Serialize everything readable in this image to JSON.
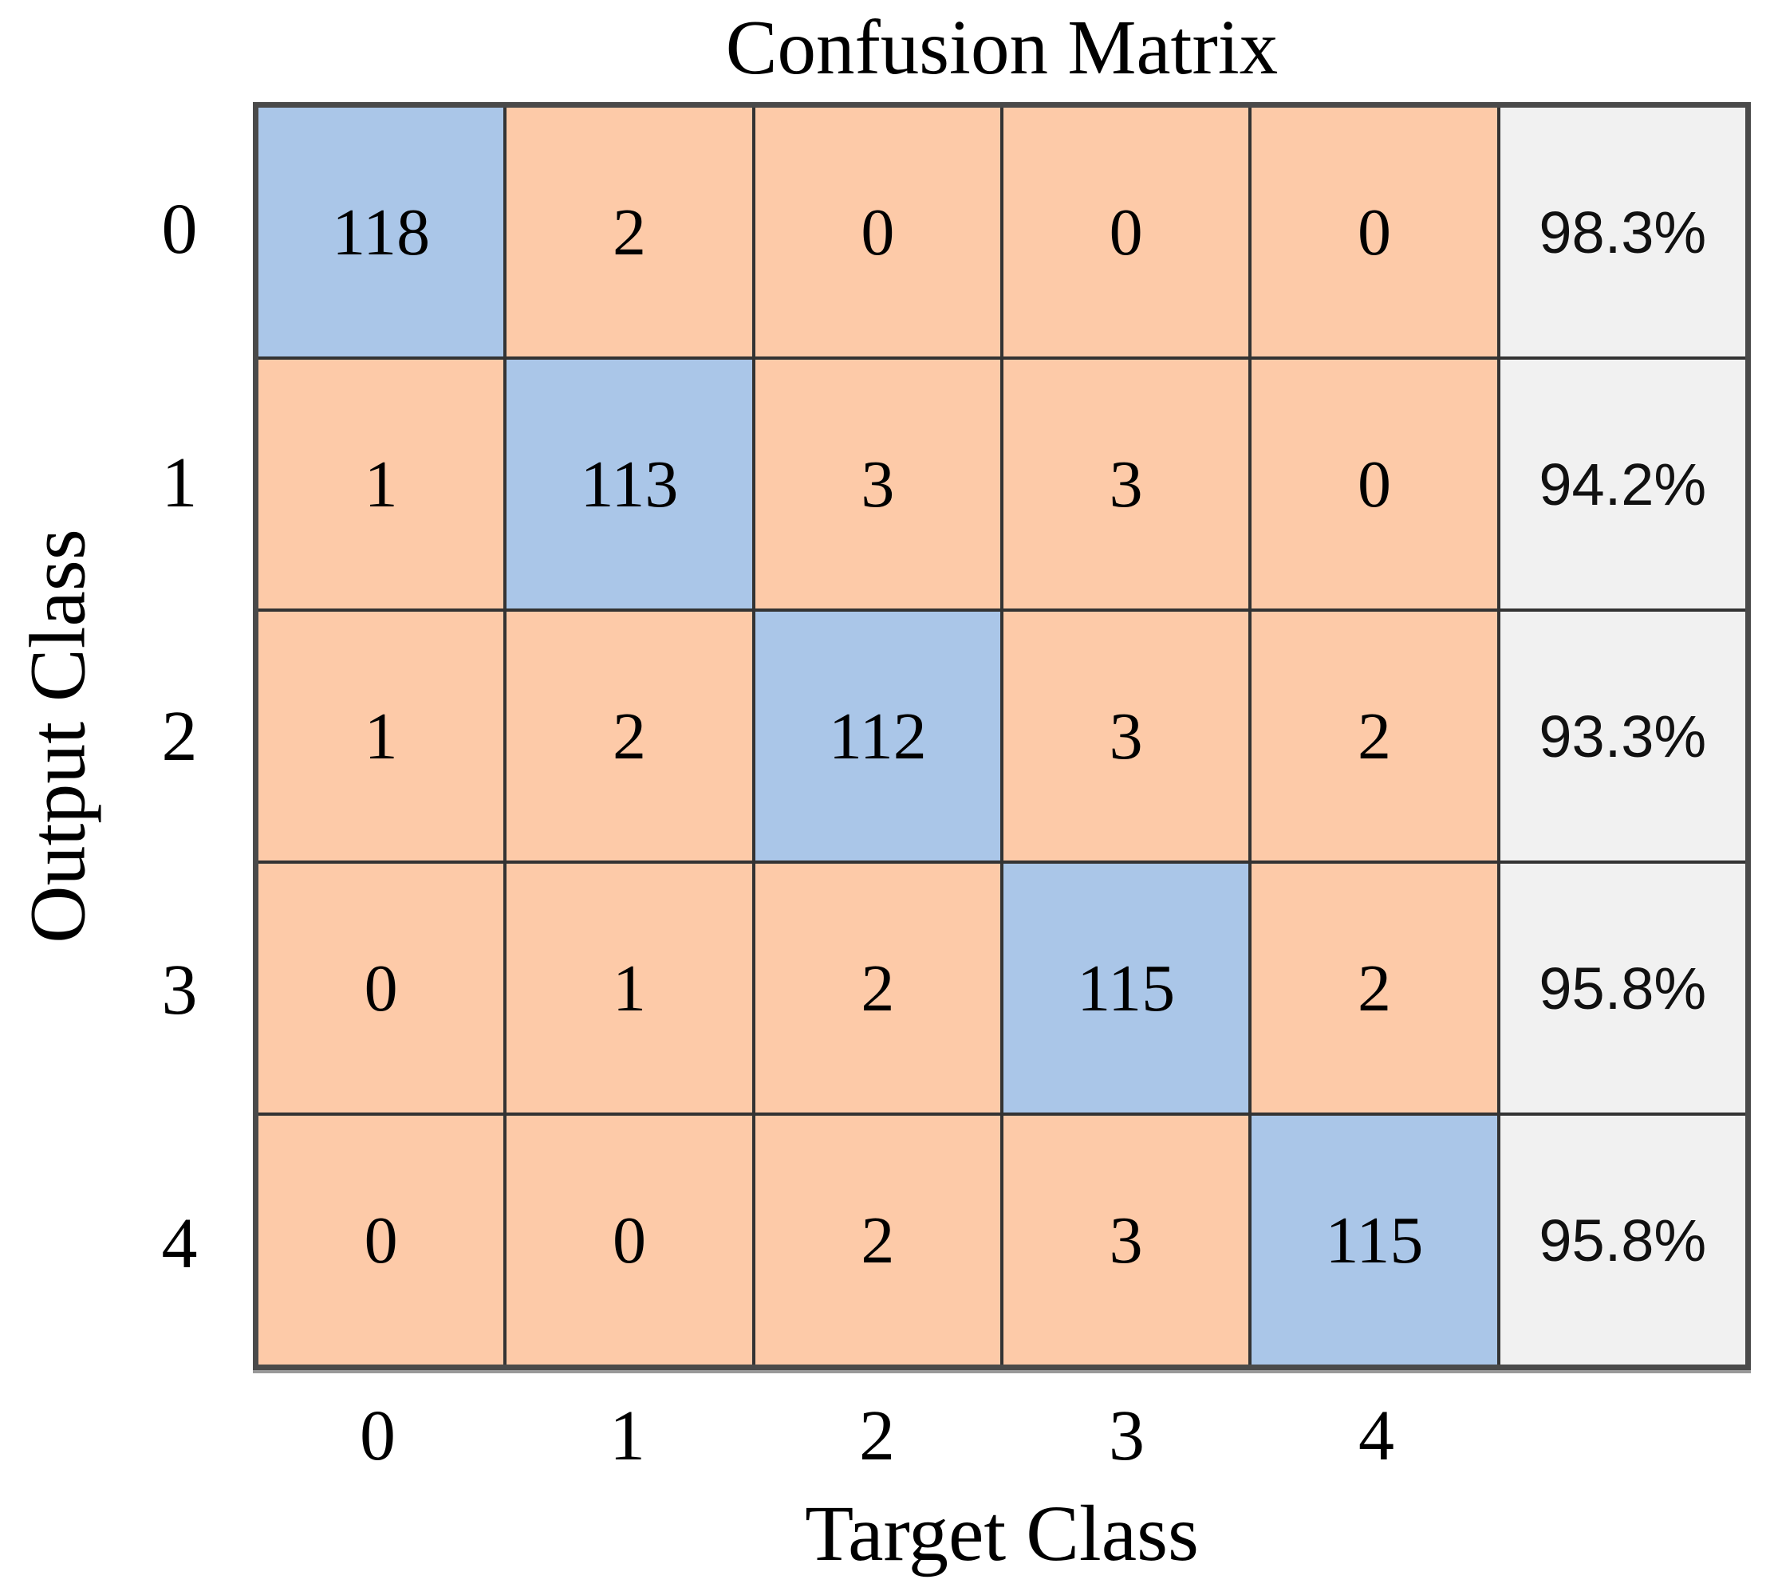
{
  "title": "Confusion Matrix",
  "x_axis_label": "Target Class",
  "y_axis_label": "Output Class",
  "chart_data": {
    "type": "heatmap",
    "title": "Confusion Matrix",
    "xlabel": "Target Class",
    "ylabel": "Output Class",
    "categories": [
      "0",
      "1",
      "2",
      "3",
      "4"
    ],
    "matrix": [
      [
        118,
        2,
        0,
        0,
        0
      ],
      [
        1,
        113,
        3,
        3,
        0
      ],
      [
        1,
        2,
        112,
        3,
        2
      ],
      [
        0,
        1,
        2,
        115,
        2
      ],
      [
        0,
        0,
        2,
        3,
        115
      ]
    ],
    "row_percentages": [
      "98.3%",
      "94.2%",
      "93.3%",
      "95.8%",
      "95.8%"
    ],
    "legend_position": "none",
    "grid": true,
    "colors": {
      "diagonal": "#aac6e8",
      "off_diagonal": "#fdcaa8",
      "percent_column": "#f1f1f1",
      "grid_line": "#333333",
      "text": "#000000"
    }
  }
}
